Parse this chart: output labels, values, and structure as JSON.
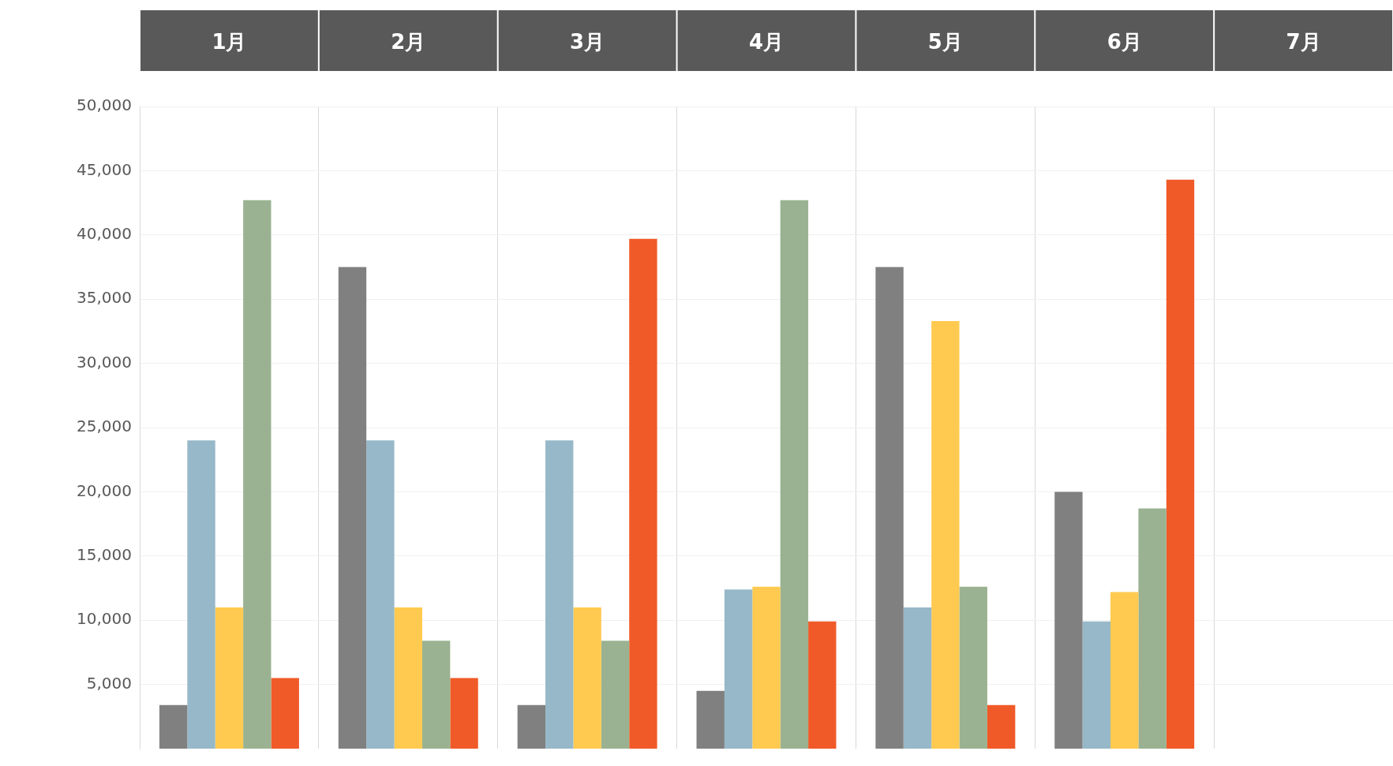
{
  "chart_data": {
    "type": "bar",
    "categories": [
      "1月",
      "2月",
      "3月",
      "4月",
      "5月",
      "6月",
      "7月"
    ],
    "series": [
      {
        "color": "#808080",
        "values": [
          3400,
          37500,
          3400,
          4500,
          37500,
          20000,
          null
        ]
      },
      {
        "color": "#97b8c8",
        "values": [
          24000,
          24000,
          24000,
          12400,
          11000,
          9900,
          null
        ]
      },
      {
        "color": "#ffca4f",
        "values": [
          11000,
          11000,
          11000,
          12600,
          33300,
          12200,
          null
        ]
      },
      {
        "color": "#9ab291",
        "values": [
          42700,
          8400,
          8400,
          42700,
          12600,
          18700,
          null
        ]
      },
      {
        "color": "#f05a28",
        "values": [
          5500,
          5500,
          39700,
          9900,
          3400,
          44300,
          null
        ]
      }
    ],
    "ylim": [
      0,
      50000
    ],
    "yticks": [
      {
        "value": 5000,
        "label": "5,000"
      },
      {
        "value": 10000,
        "label": "10,000"
      },
      {
        "value": 15000,
        "label": "15,000"
      },
      {
        "value": 20000,
        "label": "20,000"
      },
      {
        "value": 25000,
        "label": "25,000"
      },
      {
        "value": 30000,
        "label": "30,000"
      },
      {
        "value": 35000,
        "label": "35,000"
      },
      {
        "value": 40000,
        "label": "40,000"
      },
      {
        "value": 45000,
        "label": "45,000"
      },
      {
        "value": 50000,
        "label": "50,000"
      }
    ],
    "grid": true
  }
}
